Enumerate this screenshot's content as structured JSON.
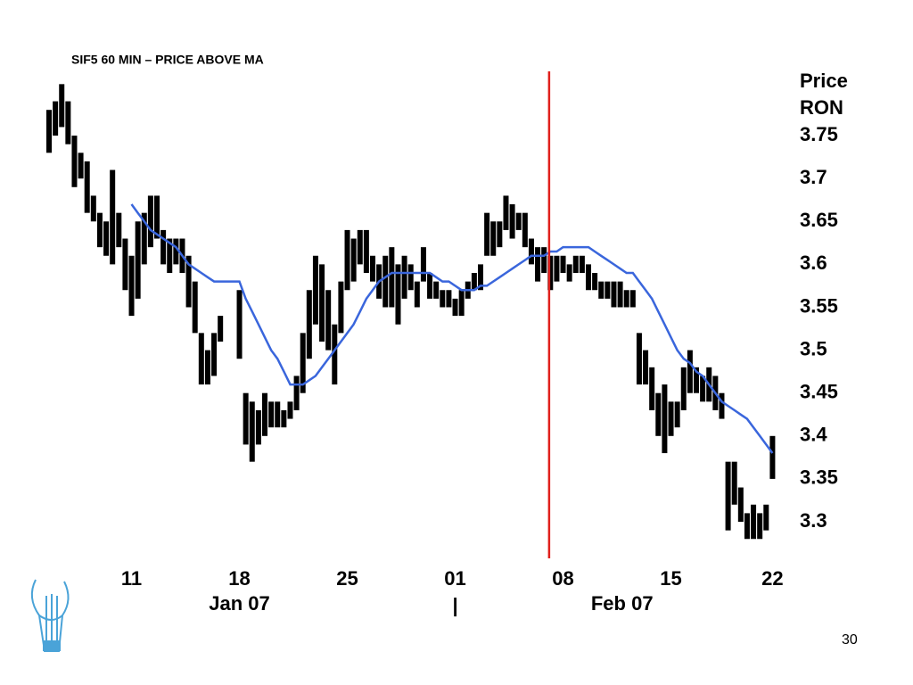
{
  "chart_data": {
    "type": "range-bar",
    "title": "SIF5 60 MIN – PRICE ABOVE MA",
    "ylabel": [
      "Price",
      "RON"
    ],
    "categories": [
      null,
      null,
      null,
      null,
      null,
      null,
      null,
      null,
      null,
      null,
      null,
      null,
      null,
      "11",
      null,
      null,
      null,
      null,
      null,
      null,
      null,
      null,
      null,
      null,
      null,
      null,
      null,
      null,
      null,
      null,
      "18",
      null,
      null,
      null,
      null,
      null,
      null,
      null,
      null,
      null,
      null,
      null,
      null,
      null,
      null,
      null,
      null,
      "25",
      null,
      null,
      null,
      null,
      null,
      null,
      null,
      null,
      null,
      null,
      null,
      null,
      null,
      null,
      null,
      null,
      "01",
      null,
      null,
      null,
      null,
      null,
      null,
      null,
      null,
      null,
      null,
      null,
      null,
      null,
      null,
      null,
      null,
      "08",
      null,
      null,
      null,
      null,
      null,
      null,
      null,
      null,
      null,
      null,
      null,
      null,
      null,
      null,
      null,
      null,
      "15",
      null,
      null,
      null,
      null,
      null,
      null,
      null,
      null,
      null,
      null,
      null,
      null,
      null,
      null,
      null,
      "22"
    ],
    "month_labels": [
      "Jan 07",
      "Feb 07"
    ],
    "month_separator": "|",
    "high": [
      3.78,
      3.79,
      3.81,
      3.79,
      3.75,
      3.73,
      3.72,
      3.68,
      3.66,
      3.65,
      3.71,
      3.66,
      3.63,
      3.61,
      3.65,
      3.66,
      3.68,
      3.68,
      3.64,
      3.63,
      3.63,
      3.63,
      3.61,
      3.58,
      3.52,
      3.5,
      3.52,
      3.54,
      null,
      null,
      3.57,
      3.45,
      3.44,
      3.43,
      3.45,
      3.44,
      3.44,
      3.43,
      3.44,
      3.47,
      3.52,
      3.57,
      3.61,
      3.6,
      3.57,
      3.53,
      3.58,
      3.64,
      3.63,
      3.64,
      3.64,
      3.61,
      3.6,
      3.61,
      3.62,
      3.6,
      3.61,
      3.6,
      3.58,
      3.62,
      3.59,
      3.58,
      3.57,
      3.57,
      3.56,
      3.57,
      3.58,
      3.59,
      3.6,
      3.66,
      3.65,
      3.65,
      3.68,
      3.67,
      3.66,
      3.66,
      3.63,
      3.62,
      3.62,
      3.61,
      3.61,
      3.61,
      3.6,
      3.61,
      3.61,
      3.6,
      3.59,
      3.58,
      3.58,
      3.58,
      3.58,
      3.57,
      3.57,
      3.52,
      3.5,
      3.48,
      3.45,
      3.46,
      3.44,
      3.44,
      3.48,
      3.5,
      3.48,
      3.47,
      3.48,
      3.47,
      3.45,
      3.37,
      3.37,
      3.34,
      3.31,
      3.32,
      3.31,
      3.32,
      3.4
    ],
    "low": [
      3.73,
      3.75,
      3.76,
      3.74,
      3.69,
      3.7,
      3.66,
      3.65,
      3.62,
      3.61,
      3.6,
      3.62,
      3.57,
      3.54,
      3.56,
      3.6,
      3.62,
      3.63,
      3.6,
      3.59,
      3.6,
      3.59,
      3.55,
      3.52,
      3.46,
      3.46,
      3.47,
      3.51,
      null,
      null,
      3.49,
      3.39,
      3.37,
      3.39,
      3.4,
      3.41,
      3.41,
      3.41,
      3.42,
      3.43,
      3.45,
      3.49,
      3.53,
      3.51,
      3.5,
      3.46,
      3.52,
      3.57,
      3.58,
      3.6,
      3.59,
      3.58,
      3.56,
      3.55,
      3.55,
      3.53,
      3.56,
      3.57,
      3.55,
      3.58,
      3.56,
      3.56,
      3.55,
      3.55,
      3.54,
      3.54,
      3.56,
      3.57,
      3.57,
      3.61,
      3.61,
      3.62,
      3.64,
      3.63,
      3.64,
      3.62,
      3.6,
      3.58,
      3.59,
      3.57,
      3.58,
      3.59,
      3.58,
      3.59,
      3.59,
      3.57,
      3.57,
      3.56,
      3.56,
      3.55,
      3.55,
      3.55,
      3.55,
      3.46,
      3.46,
      3.43,
      3.4,
      3.38,
      3.4,
      3.41,
      3.43,
      3.45,
      3.45,
      3.44,
      3.44,
      3.43,
      3.42,
      3.29,
      3.32,
      3.3,
      3.28,
      3.28,
      3.28,
      3.29,
      3.35
    ],
    "ma": [
      null,
      null,
      null,
      null,
      null,
      null,
      null,
      null,
      null,
      null,
      null,
      null,
      null,
      3.67,
      3.66,
      3.65,
      3.64,
      3.635,
      3.63,
      3.625,
      3.62,
      3.61,
      3.6,
      3.595,
      3.59,
      3.585,
      3.58,
      3.58,
      3.58,
      3.58,
      3.58,
      3.56,
      3.545,
      3.53,
      3.515,
      3.5,
      3.49,
      3.475,
      3.46,
      3.46,
      3.46,
      3.465,
      3.47,
      3.48,
      3.49,
      3.5,
      3.51,
      3.52,
      3.53,
      3.545,
      3.56,
      3.57,
      3.58,
      3.585,
      3.59,
      3.59,
      3.59,
      3.59,
      3.59,
      3.59,
      3.59,
      3.585,
      3.58,
      3.58,
      3.575,
      3.57,
      3.57,
      3.57,
      3.575,
      3.575,
      3.58,
      3.585,
      3.59,
      3.595,
      3.6,
      3.605,
      3.61,
      3.61,
      3.61,
      3.615,
      3.615,
      3.62,
      3.62,
      3.62,
      3.62,
      3.62,
      3.615,
      3.61,
      3.605,
      3.6,
      3.595,
      3.59,
      3.59,
      3.58,
      3.57,
      3.56,
      3.545,
      3.53,
      3.515,
      3.5,
      3.49,
      3.485,
      3.475,
      3.47,
      3.46,
      3.45,
      3.44,
      3.435,
      3.43,
      3.425,
      3.42,
      3.41,
      3.4,
      3.39,
      3.38
    ],
    "marker_x": 78.8,
    "bar_color": "#000000",
    "ma_color": "#3a66dc",
    "marker_color": "#e0201c",
    "ylim": [
      3.26,
      3.83
    ],
    "yticks": [
      3.3,
      3.35,
      3.4,
      3.45,
      3.5,
      3.55,
      3.6,
      3.65,
      3.7,
      3.75
    ],
    "grid": false,
    "page_number": "30"
  }
}
